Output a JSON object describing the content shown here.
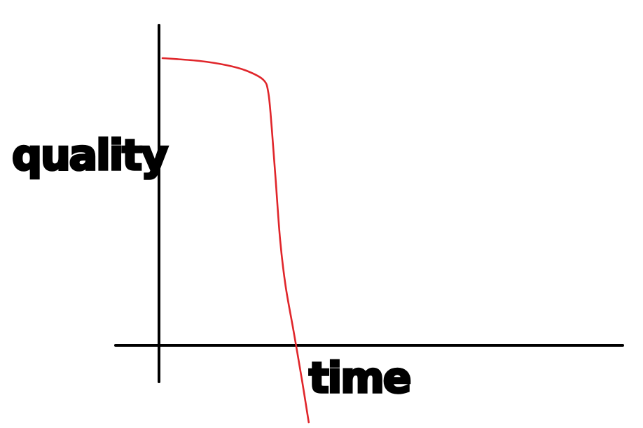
{
  "chart_data": {
    "type": "line",
    "title": "",
    "xlabel": "time",
    "ylabel": "quality",
    "xlim": [
      0,
      100
    ],
    "ylim": [
      -22,
      100
    ],
    "grid": false,
    "legend": "none",
    "series": [
      {
        "color": "#e0262b",
        "points": [
          {
            "x": 0,
            "y": 82
          },
          {
            "x": 11,
            "y": 81.2
          },
          {
            "x": 19,
            "y": 80
          },
          {
            "x": 25,
            "y": 78.4
          },
          {
            "x": 30,
            "y": 75.8
          },
          {
            "x": 31.5,
            "y": 72
          },
          {
            "x": 32.5,
            "y": 62
          },
          {
            "x": 33.6,
            "y": 48
          },
          {
            "x": 35,
            "y": 30
          },
          {
            "x": 36.6,
            "y": 17
          },
          {
            "x": 39,
            "y": 4
          },
          {
            "x": 41.5,
            "y": -10
          },
          {
            "x": 43.5,
            "y": -22
          }
        ]
      }
    ]
  }
}
